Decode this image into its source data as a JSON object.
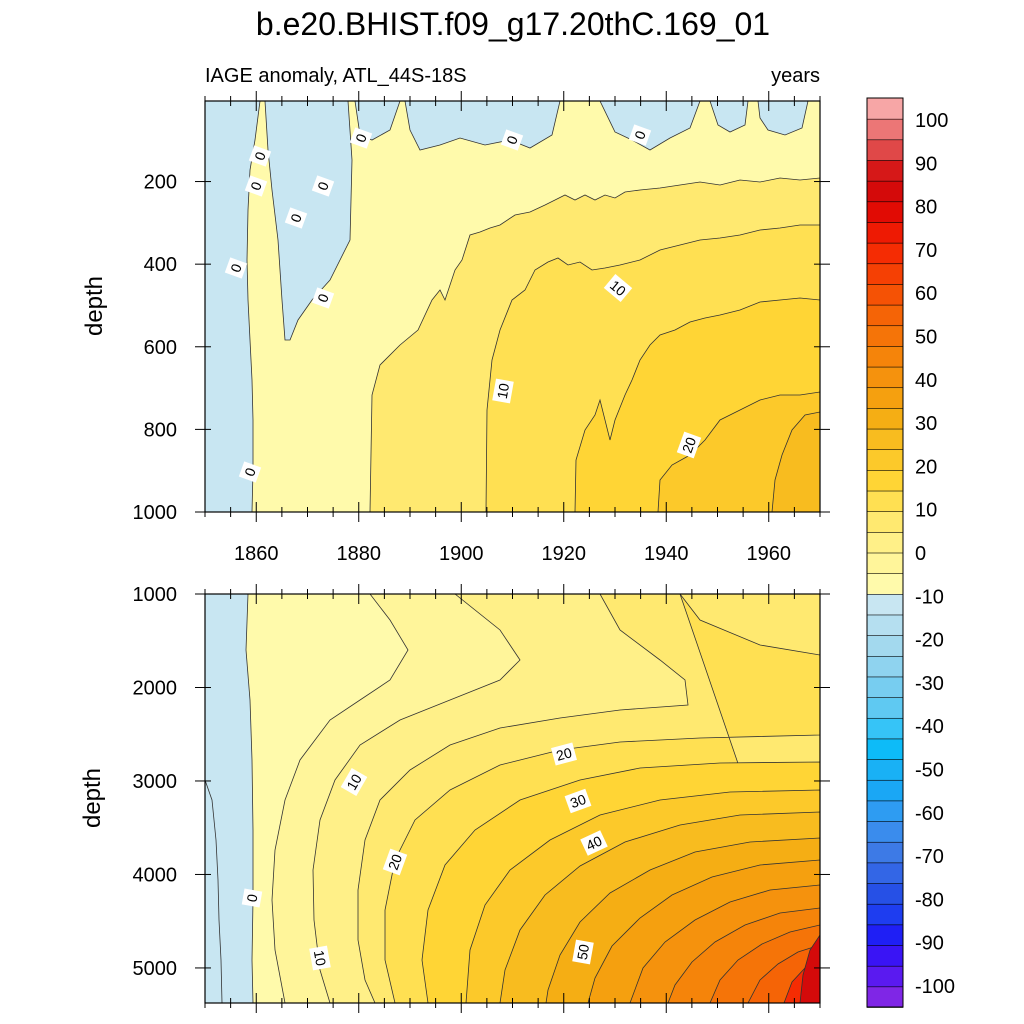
{
  "chart_data": {
    "type": "heatmap",
    "title": "b.e20.BHIST.f09_g17.20thC.169_01",
    "left_subtitle": "IAGE anomaly, ATL_44S-18S",
    "right_subtitle": "years",
    "colorbar": {
      "labels": [
        "100",
        "90",
        "80",
        "70",
        "60",
        "50",
        "40",
        "30",
        "20",
        "10",
        "0",
        "-10",
        "-20",
        "-30",
        "-40",
        "-50",
        "-60",
        "-70",
        "-80",
        "-90",
        "-100"
      ],
      "colors": [
        "#7f26e6",
        "#5a1af0",
        "#3a14f5",
        "#1f1ff5",
        "#1e3df0",
        "#2650e6",
        "#3366e6",
        "#3d7ae6",
        "#3a8ced",
        "#2e9cf2",
        "#1aa7f5",
        "#19b1f5",
        "#0dbbf8",
        "#36c4f7",
        "#5fc9f2",
        "#77cdf0",
        "#8fd3ef",
        "#a3d9ee",
        "#b5dff0",
        "#c8e6f2",
        "#fffaab",
        "#fff59a",
        "#fff088",
        "#ffe970",
        "#ffe052",
        "#ffd535",
        "#fcc92a",
        "#f8bc1f",
        "#f5ae14",
        "#f5a00f",
        "#f5920d",
        "#f5840a",
        "#f57408",
        "#f56406",
        "#f55205",
        "#f54004",
        "#f52c03",
        "#ee1a03",
        "#e10b04",
        "#d40a0a",
        "#d61818",
        "#e04848",
        "#ec7676",
        "#f7a6a6"
      ]
    },
    "panels": [
      {
        "name": "upper",
        "ylabel": "depth",
        "x_ticks": [
          "1860",
          "1880",
          "1900",
          "1920",
          "1940",
          "1960"
        ],
        "y_ticks": [
          "200",
          "400",
          "600",
          "800",
          "1000"
        ],
        "xlim": [
          1850,
          1970
        ],
        "ylim": [
          1000,
          5
        ],
        "contour_labels": [
          "0",
          "0",
          "0",
          "0",
          "0",
          "0",
          "0",
          "0",
          "0",
          "0",
          "10",
          "10",
          "20"
        ]
      },
      {
        "name": "lower",
        "ylabel": "depth",
        "x_ticks": [],
        "y_ticks": [
          "1000",
          "2000",
          "3000",
          "4000",
          "5000"
        ],
        "xlim": [
          1850,
          1970
        ],
        "ylim": [
          5375,
          1000
        ],
        "contour_labels": [
          "0",
          "10",
          "10",
          "20",
          "20",
          "30",
          "40",
          "50"
        ]
      }
    ]
  }
}
